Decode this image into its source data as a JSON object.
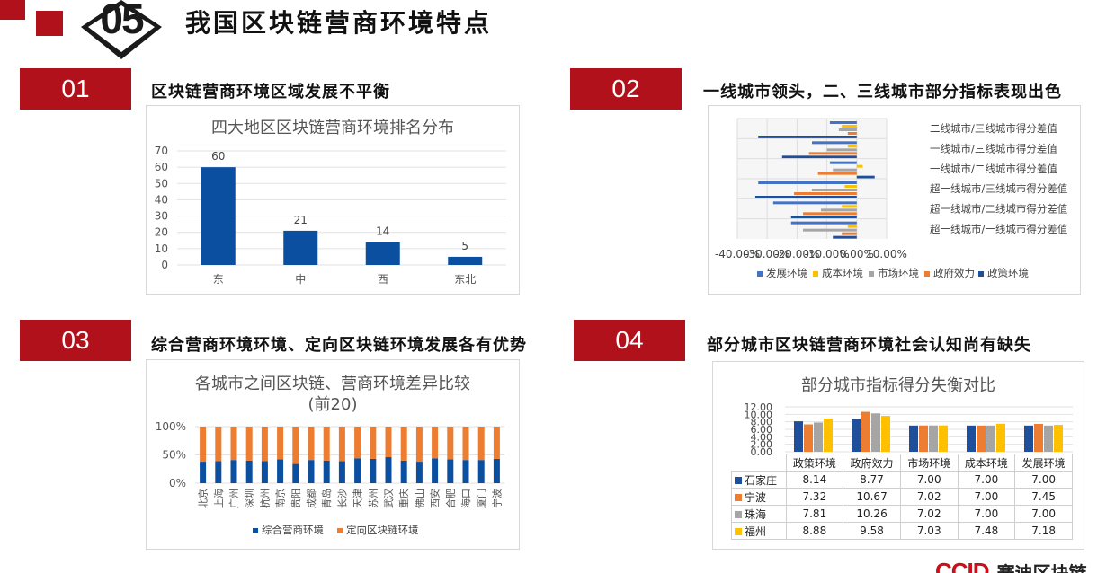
{
  "header": {
    "number": "05",
    "title": "我国区块链营商环境特点",
    "colors": {
      "red": "#b0111b",
      "dark": "#1a1a1a"
    }
  },
  "sections": [
    {
      "num": "01",
      "title": "区块链营商环境区域发展不平衡"
    },
    {
      "num": "02",
      "title": "一线城市领头，二、三线城市部分指标表现出色"
    },
    {
      "num": "03",
      "title": "综合营商环境环境、定向区块链环境发展各有优势"
    },
    {
      "num": "04",
      "title": "部分城市区块链营商环境社会认知尚有缺失"
    }
  ],
  "chart_data": [
    {
      "type": "bar",
      "title": "四大地区区块链营商环境排名分布",
      "categories": [
        "东",
        "中",
        "西",
        "东北"
      ],
      "values": [
        60,
        21,
        14,
        5
      ],
      "ylim": [
        0,
        70
      ],
      "yticks": [
        "0",
        "10",
        "20",
        "30",
        "40",
        "50",
        "60",
        "70"
      ],
      "color": "#0b4fa0",
      "grid": true
    },
    {
      "type": "bar",
      "orientation": "horizontal",
      "categories": [
        "超一线城市/一线城市得分差值",
        "超一线城市/二线城市得分差值",
        "超一线城市/三线城市得分差值",
        "一线城市/二线城市得分差值",
        "一线城市/三线城市得分差值",
        "二线城市/三线城市得分差值"
      ],
      "xticks": [
        "-40.00%",
        "-30.00%",
        "-20.00%",
        "-10.00%",
        "0.00%",
        "10.00%"
      ],
      "xlim": [
        -40,
        10
      ],
      "series": [
        {
          "name": "发展环境",
          "color": "#4472c4",
          "values": [
            -22,
            -28,
            -33,
            -9,
            -15,
            -9
          ]
        },
        {
          "name": "成本环境",
          "color": "#ffc000",
          "values": [
            -3,
            -5,
            -4,
            2,
            -3,
            -5
          ]
        },
        {
          "name": "市场环境",
          "color": "#a5a5a5",
          "values": [
            -18,
            -12,
            -15,
            -8,
            -10,
            -6
          ]
        },
        {
          "name": "政府效力",
          "color": "#ed7d31",
          "values": [
            -5,
            -18,
            -21,
            -13,
            -16,
            -3
          ]
        },
        {
          "name": "政策环境",
          "color": "#1f4e9a",
          "values": [
            -8,
            -22,
            -34,
            6,
            -25,
            -33
          ]
        }
      ],
      "legend": "bottom",
      "grid": true
    },
    {
      "type": "bar",
      "stacked": "percent",
      "title": "各城市之间区块链、营商环境差异比较",
      "subtitle": "(前20)",
      "categories": [
        "北京",
        "上海",
        "广州",
        "深圳",
        "杭州",
        "南京",
        "贵阳",
        "成都",
        "青岛",
        "长沙",
        "天津",
        "苏州",
        "武汉",
        "重庆",
        "佛山",
        "西安",
        "合肥",
        "海口",
        "厦门",
        "宁波"
      ],
      "yticks": [
        "0%",
        "50%",
        "100%"
      ],
      "series": [
        {
          "name": "综合营商环境",
          "color": "#0b4fa0",
          "values": [
            38,
            39,
            41,
            40,
            39,
            42,
            34,
            41,
            40,
            39,
            44,
            43,
            46,
            40,
            38,
            44,
            42,
            41,
            41,
            43
          ]
        },
        {
          "name": "定向区块链环境",
          "color": "#ed7d31",
          "values": [
            62,
            61,
            59,
            60,
            61,
            58,
            66,
            59,
            60,
            61,
            56,
            57,
            54,
            60,
            62,
            56,
            58,
            59,
            59,
            57
          ]
        }
      ],
      "legend": "bottom",
      "grid": true
    },
    {
      "type": "bar",
      "title": "部分城市指标得分失衡对比",
      "categories": [
        "政策环境",
        "政府效力",
        "市场环境",
        "成本环境",
        "发展环境"
      ],
      "yticks": [
        "0.00",
        "2.00",
        "4.00",
        "6.00",
        "8.00",
        "10.00",
        "12.00"
      ],
      "ylim": [
        0,
        12
      ],
      "series": [
        {
          "name": "石家庄",
          "color": "#1f4e9a",
          "values": [
            8.14,
            8.77,
            7.0,
            7.0,
            7.0
          ]
        },
        {
          "name": "宁波",
          "color": "#ed7d31",
          "values": [
            7.32,
            10.67,
            7.02,
            7.0,
            7.45
          ]
        },
        {
          "name": "珠海",
          "color": "#a5a5a5",
          "values": [
            7.81,
            10.26,
            7.02,
            7.0,
            7.0
          ]
        },
        {
          "name": "福州",
          "color": "#ffc000",
          "values": [
            8.88,
            9.58,
            7.03,
            7.48,
            7.18
          ]
        }
      ],
      "table_text": [
        [
          "8.14",
          "8.77",
          "7.00",
          "7.00",
          "7.00"
        ],
        [
          "7.32",
          "10.67",
          "7.02",
          "7.00",
          "7.45"
        ],
        [
          "7.81",
          "10.26",
          "7.02",
          "7.00",
          "7.00"
        ],
        [
          "8.88",
          "9.58",
          "7.03",
          "7.48",
          "7.18"
        ]
      ],
      "grid": true
    }
  ],
  "footer": {
    "logo_text": "CCID",
    "brand_text": "赛迪区块链"
  }
}
